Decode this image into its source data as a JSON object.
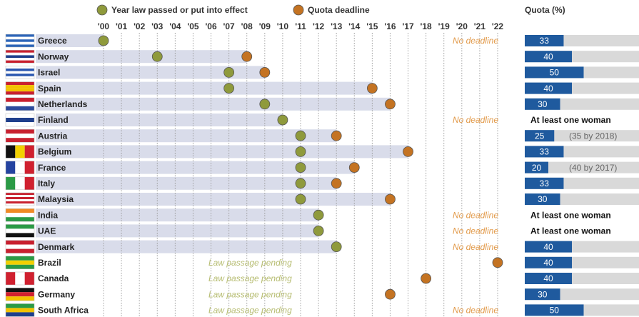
{
  "chart_data": {
    "type": "timeline",
    "categories": [
      "Greece",
      "Norway",
      "Israel",
      "Spain",
      "Netherlands",
      "Finland",
      "Austria",
      "Belgium",
      "France",
      "Italy",
      "Malaysia",
      "India",
      "UAE",
      "Denmark",
      "Brazil",
      "Canada",
      "Germany",
      "South Africa"
    ],
    "series": [
      {
        "name": "Year law passed or put into effect",
        "color": "#8f9a3c",
        "values": [
          2000,
          2003,
          2007,
          2007,
          2009,
          2010,
          2011,
          2011,
          2011,
          2011,
          2011,
          2012,
          2012,
          2013,
          null,
          null,
          null,
          null
        ]
      },
      {
        "name": "Quota deadline",
        "color": "#c47322",
        "values": [
          null,
          2008,
          2009,
          2015,
          2016,
          null,
          2013,
          2017,
          2014,
          2013,
          2016,
          null,
          null,
          null,
          2022,
          2018,
          2016,
          null
        ]
      }
    ],
    "deadline_notes": [
      "No deadline",
      null,
      null,
      null,
      null,
      "No deadline",
      null,
      null,
      null,
      null,
      null,
      "No deadline",
      "No deadline",
      "No deadline",
      null,
      null,
      null,
      "No deadline"
    ],
    "pending_notes": [
      null,
      null,
      null,
      null,
      null,
      null,
      null,
      null,
      null,
      null,
      null,
      null,
      null,
      null,
      "Law passage pending",
      "Law passage pending",
      "Law passage pending",
      "Law passage pending"
    ],
    "xlim": [
      2000,
      2022
    ],
    "xticks": [
      {
        "value": 2000,
        "label": "'00"
      },
      {
        "value": 2001,
        "label": "'01"
      },
      {
        "value": 2002,
        "label": "'02"
      },
      {
        "value": 2003,
        "label": "'03"
      },
      {
        "value": 2004,
        "label": "'04"
      },
      {
        "value": 2005,
        "label": "'05"
      },
      {
        "value": 2006,
        "label": "'06"
      },
      {
        "value": 2007,
        "label": "'07"
      },
      {
        "value": 2008,
        "label": "'08"
      },
      {
        "value": 2009,
        "label": "'09"
      },
      {
        "value": 2010,
        "label": "'10"
      },
      {
        "value": 2011,
        "label": "'11"
      },
      {
        "value": 2012,
        "label": "'12"
      },
      {
        "value": 2013,
        "label": "'13"
      },
      {
        "value": 2014,
        "label": "'14"
      },
      {
        "value": 2015,
        "label": "'15"
      },
      {
        "value": 2016,
        "label": "'16"
      },
      {
        "value": 2017,
        "label": "'17"
      },
      {
        "value": 2018,
        "label": "'18"
      },
      {
        "value": 2019,
        "label": "'19"
      },
      {
        "value": 2020,
        "label": "'20"
      },
      {
        "value": 2021,
        "label": "'21"
      },
      {
        "value": 2022,
        "label": "'22"
      }
    ],
    "grid": true,
    "quota": {
      "title": "Quota (%)",
      "color": "#1f5a9e",
      "xlim": [
        0,
        100
      ],
      "values": [
        33,
        40,
        50,
        40,
        30,
        null,
        25,
        33,
        20,
        33,
        30,
        null,
        null,
        40,
        40,
        40,
        30,
        50
      ],
      "labels": [
        null,
        null,
        null,
        null,
        null,
        "At least one woman",
        null,
        null,
        null,
        null,
        null,
        "At least one woman",
        "At least one woman",
        null,
        null,
        null,
        null,
        null
      ],
      "notes": [
        null,
        null,
        null,
        null,
        null,
        null,
        "(35 by 2018)",
        null,
        "(40 by 2017)",
        null,
        null,
        null,
        null,
        null,
        null,
        null,
        null,
        null
      ]
    }
  }
}
